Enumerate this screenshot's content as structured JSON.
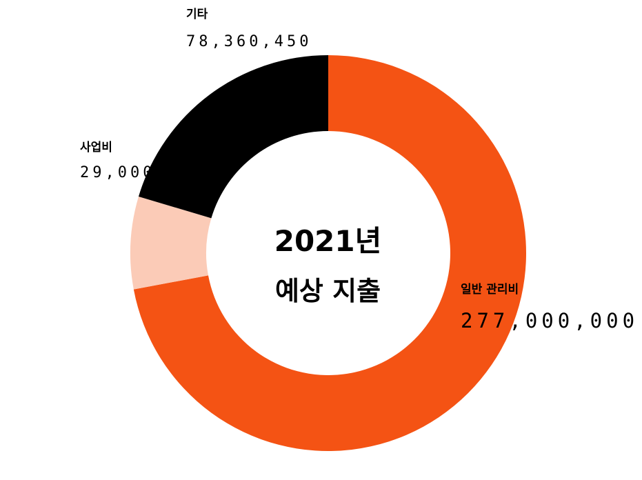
{
  "chart_data": {
    "type": "pie",
    "donut": true,
    "center_text": [
      "2021년",
      "예상 지출"
    ],
    "slices": [
      {
        "label": "일반 관리비",
        "value": 277000000,
        "value_text": "277,000,000",
        "color": "#f45314"
      },
      {
        "label": "사업비",
        "value": 29000000,
        "value_text": "29,000,000",
        "color": "#fbcbb7"
      },
      {
        "label": "기타",
        "value": 78360450,
        "value_text": "78,360,450",
        "color": "#000000"
      }
    ]
  }
}
